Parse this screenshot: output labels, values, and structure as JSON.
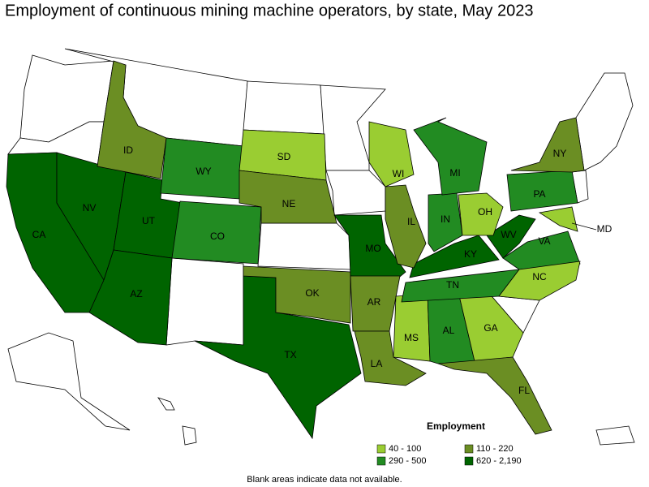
{
  "title": "Employment of continuous mining machine operators, by state, May 2023",
  "note": "Blank areas indicate data not available.",
  "legend": {
    "title": "Employment",
    "items": [
      {
        "label": "40 - 100",
        "color": "#9acd32"
      },
      {
        "label": "110 - 220",
        "color": "#6b8e23"
      },
      {
        "label": "290 - 500",
        "color": "#228b22"
      },
      {
        "label": "620 - 2,190",
        "color": "#006400"
      }
    ]
  },
  "states": [
    {
      "abbr": "CA",
      "color": "#006400"
    },
    {
      "abbr": "NV",
      "color": "#006400"
    },
    {
      "abbr": "UT",
      "color": "#006400"
    },
    {
      "abbr": "AZ",
      "color": "#006400"
    },
    {
      "abbr": "ID",
      "color": "#6b8e23"
    },
    {
      "abbr": "WY",
      "color": "#228b22"
    },
    {
      "abbr": "CO",
      "color": "#228b22"
    },
    {
      "abbr": "SD",
      "color": "#9acd32"
    },
    {
      "abbr": "NE",
      "color": "#6b8e23"
    },
    {
      "abbr": "TX",
      "color": "#006400"
    },
    {
      "abbr": "OK",
      "color": "#6b8e23"
    },
    {
      "abbr": "MO",
      "color": "#006400"
    },
    {
      "abbr": "AR",
      "color": "#6b8e23"
    },
    {
      "abbr": "LA",
      "color": "#6b8e23"
    },
    {
      "abbr": "MS",
      "color": "#9acd32"
    },
    {
      "abbr": "AL",
      "color": "#228b22"
    },
    {
      "abbr": "GA",
      "color": "#9acd32"
    },
    {
      "abbr": "FL",
      "color": "#6b8e23"
    },
    {
      "abbr": "TN",
      "color": "#228b22"
    },
    {
      "abbr": "KY",
      "color": "#006400"
    },
    {
      "abbr": "WV",
      "color": "#006400"
    },
    {
      "abbr": "VA",
      "color": "#228b22"
    },
    {
      "abbr": "NC",
      "color": "#9acd32"
    },
    {
      "abbr": "IL",
      "color": "#6b8e23"
    },
    {
      "abbr": "IN",
      "color": "#228b22"
    },
    {
      "abbr": "OH",
      "color": "#9acd32"
    },
    {
      "abbr": "MI",
      "color": "#228b22"
    },
    {
      "abbr": "WI",
      "color": "#9acd32"
    },
    {
      "abbr": "PA",
      "color": "#228b22"
    },
    {
      "abbr": "NY",
      "color": "#6b8e23"
    },
    {
      "abbr": "MD",
      "color": "#9acd32"
    }
  ]
}
